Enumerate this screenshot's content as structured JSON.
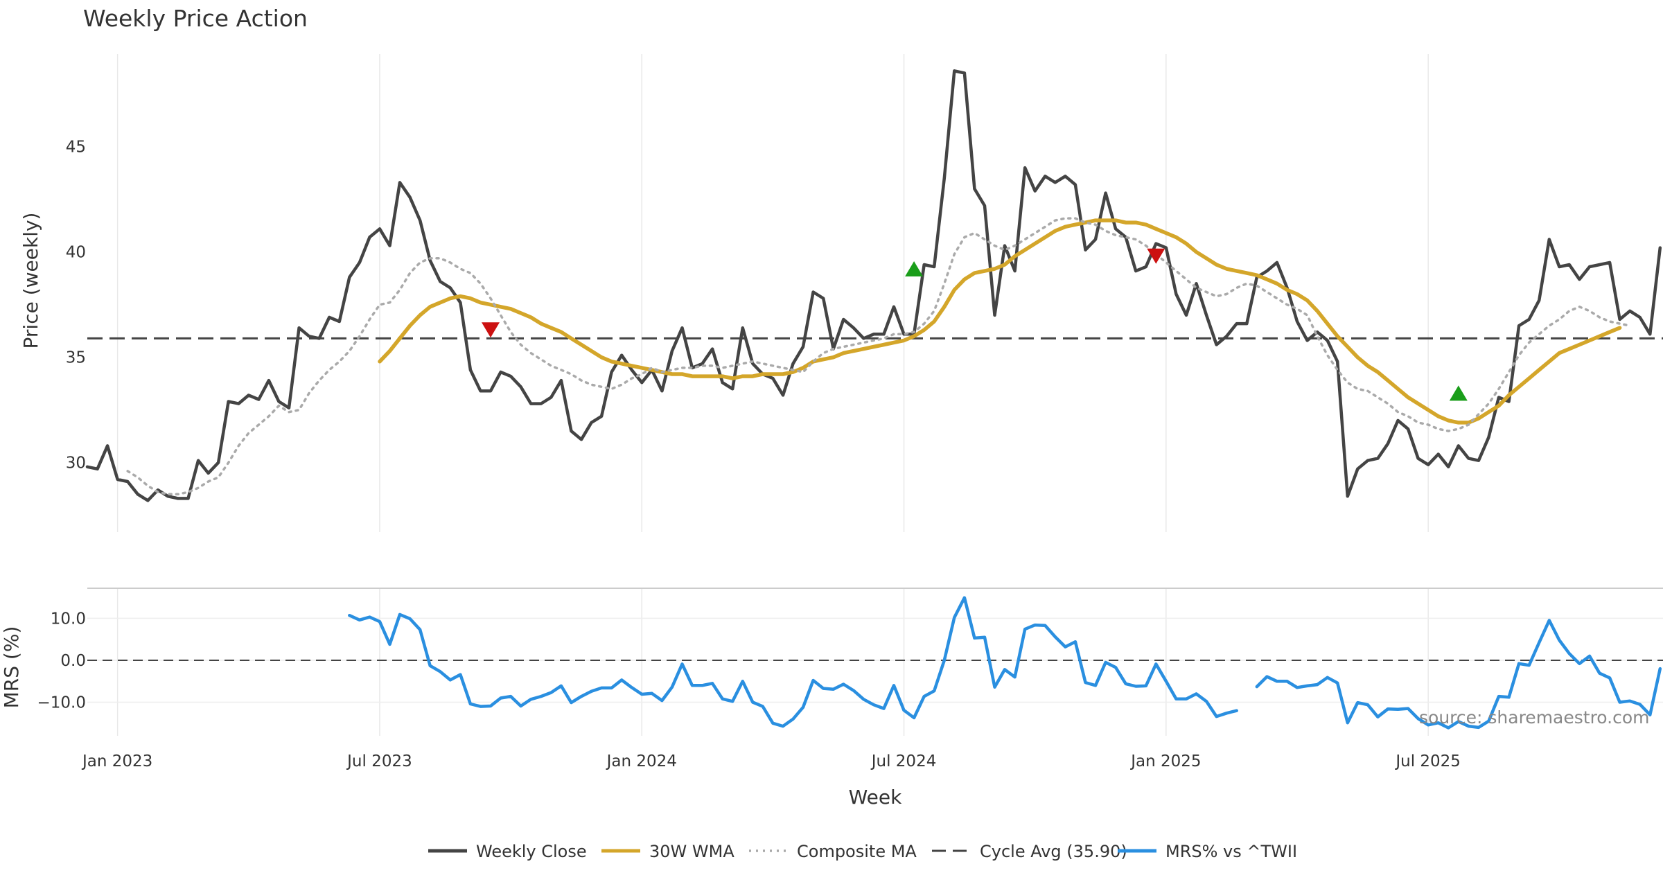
{
  "chart_data": {
    "type": "line",
    "title": "Weekly Price Action",
    "xlabel": "Week",
    "source": "source: sharemaestro.com",
    "x_ticks": [
      "Jan 2023",
      "Jul 2023",
      "Jan 2024",
      "Jul 2024",
      "Jan 2025",
      "Jul 2025"
    ],
    "x_tick_weeks": [
      3,
      29,
      55,
      81,
      107,
      133
    ],
    "price_panel": {
      "ylabel": "Price (weekly)",
      "ylim": [
        26.7,
        49.4
      ],
      "y_ticks": [
        30,
        35,
        40,
        45
      ],
      "series": [
        {
          "name": "Weekly Close",
          "color": "#444444",
          "values": [
            29.8,
            29.7,
            30.8,
            29.2,
            29.1,
            28.5,
            28.2,
            28.7,
            28.4,
            28.3,
            28.3,
            30.1,
            29.5,
            30.0,
            32.9,
            32.8,
            33.2,
            33.0,
            33.9,
            32.9,
            32.6,
            36.4,
            36.0,
            35.9,
            36.9,
            36.7,
            38.8,
            39.5,
            40.7,
            41.1,
            40.3,
            43.3,
            42.6,
            41.5,
            39.6,
            38.6,
            38.3,
            37.6,
            34.4,
            33.4,
            33.4,
            34.3,
            34.1,
            33.6,
            32.8,
            32.8,
            33.1,
            33.9,
            31.5,
            31.1,
            31.9,
            32.2,
            34.3,
            35.1,
            34.4,
            33.8,
            34.4,
            33.4,
            35.3,
            36.4,
            34.5,
            34.7,
            35.4,
            33.8,
            33.5,
            36.4,
            34.7,
            34.2,
            34.0,
            33.2,
            34.7,
            35.5,
            38.1,
            37.8,
            35.4,
            36.8,
            36.4,
            35.9,
            36.1,
            36.1,
            37.4,
            36.1,
            36.1,
            39.4,
            39.3,
            43.5,
            48.6,
            48.5,
            43.0,
            42.2,
            37.0,
            40.3,
            39.1,
            44.0,
            42.9,
            43.6,
            43.3,
            43.6,
            43.2,
            40.1,
            40.6,
            42.8,
            41.1,
            40.7,
            39.1,
            39.3,
            40.4,
            40.2,
            38.0,
            37.0,
            38.5,
            37.0,
            35.6,
            36.0,
            36.6,
            36.6,
            38.8,
            39.1,
            39.5,
            38.3,
            36.7,
            35.8,
            36.2,
            35.8,
            34.8,
            28.4,
            29.7,
            30.1,
            30.2,
            30.9,
            32.0,
            31.6,
            30.2,
            29.9,
            30.4,
            29.8,
            30.8,
            30.2,
            30.1,
            31.2,
            33.1,
            32.9,
            36.5,
            36.8,
            37.7,
            40.6,
            39.3,
            39.4,
            38.7,
            39.3,
            39.4,
            39.5,
            36.8,
            37.2,
            36.9,
            36.1,
            40.2
          ]
        },
        {
          "name": "30W WMA",
          "color": "#d4a62a",
          "start_week": 29,
          "values": [
            34.8,
            35.3,
            35.9,
            36.5,
            37.0,
            37.4,
            37.6,
            37.8,
            37.9,
            37.8,
            37.6,
            37.5,
            37.4,
            37.3,
            37.1,
            36.9,
            36.6,
            36.4,
            36.2,
            35.9,
            35.6,
            35.3,
            35.0,
            34.8,
            34.7,
            34.6,
            34.5,
            34.4,
            34.3,
            34.2,
            34.2,
            34.1,
            34.1,
            34.1,
            34.1,
            34.0,
            34.1,
            34.1,
            34.2,
            34.2,
            34.2,
            34.3,
            34.5,
            34.8,
            34.9,
            35.0,
            35.2,
            35.3,
            35.4,
            35.5,
            35.6,
            35.7,
            35.8,
            36.0,
            36.3,
            36.7,
            37.4,
            38.2,
            38.7,
            39.0,
            39.1,
            39.2,
            39.4,
            39.8,
            40.1,
            40.4,
            40.7,
            41.0,
            41.2,
            41.3,
            41.4,
            41.5,
            41.5,
            41.5,
            41.4,
            41.4,
            41.3,
            41.1,
            40.9,
            40.7,
            40.4,
            40.0,
            39.7,
            39.4,
            39.2,
            39.1,
            39.0,
            38.9,
            38.7,
            38.5,
            38.2,
            38.0,
            37.7,
            37.2,
            36.6,
            36.0,
            35.5,
            35.0,
            34.6,
            34.3,
            33.9,
            33.5,
            33.1,
            32.8,
            32.5,
            32.2,
            32.0,
            31.9,
            31.9,
            32.1,
            32.4,
            32.7,
            33.2,
            33.6,
            34.0,
            34.4,
            34.8,
            35.2,
            35.4,
            35.6,
            35.8,
            36.0,
            36.2,
            36.4
          ]
        },
        {
          "name": "Composite MA",
          "color": "#aaaaaa",
          "start_week": 4,
          "values": [
            29.6,
            29.3,
            28.9,
            28.6,
            28.5,
            28.5,
            28.6,
            28.8,
            29.1,
            29.3,
            30.0,
            30.8,
            31.4,
            31.8,
            32.2,
            32.7,
            32.4,
            32.5,
            33.3,
            33.9,
            34.4,
            34.8,
            35.3,
            36.0,
            36.8,
            37.5,
            37.6,
            38.2,
            39.0,
            39.5,
            39.7,
            39.7,
            39.5,
            39.2,
            39.0,
            38.5,
            37.8,
            37.0,
            36.2,
            35.6,
            35.2,
            34.9,
            34.6,
            34.4,
            34.2,
            33.9,
            33.7,
            33.6,
            33.5,
            33.7,
            34.0,
            34.2,
            34.5,
            34.3,
            34.4,
            34.5,
            34.5,
            34.6,
            34.6,
            34.5,
            34.6,
            34.7,
            34.8,
            34.7,
            34.6,
            34.5,
            34.4,
            34.3,
            34.8,
            35.2,
            35.4,
            35.5,
            35.6,
            35.7,
            35.8,
            35.9,
            36.1,
            36.1,
            36.2,
            36.6,
            37.2,
            38.5,
            39.9,
            40.7,
            40.9,
            40.6,
            40.3,
            40.1,
            40.3,
            40.6,
            40.9,
            41.2,
            41.5,
            41.6,
            41.6,
            41.4,
            41.3,
            41.0,
            40.8,
            40.7,
            40.6,
            40.3,
            39.9,
            39.5,
            39.1,
            38.7,
            38.3,
            38.1,
            37.9,
            38.0,
            38.3,
            38.5,
            38.4,
            38.1,
            37.8,
            37.5,
            37.3,
            37.0,
            36.0,
            35.1,
            34.4,
            33.8,
            33.5,
            33.4,
            33.1,
            32.8,
            32.4,
            32.2,
            31.9,
            31.8,
            31.6,
            31.5,
            31.6,
            31.8,
            32.3,
            32.8,
            33.5,
            34.3,
            35.1,
            35.7,
            36.1,
            36.5,
            36.8,
            37.2,
            37.4,
            37.2,
            36.9,
            36.7,
            36.6,
            36.5
          ]
        }
      ],
      "reference_line": {
        "name": "Cycle Avg (35.90)",
        "value": 35.9,
        "color": "#444444"
      },
      "signals": [
        {
          "type": "sell",
          "week": 40,
          "value": 36.3,
          "color": "#cc1111"
        },
        {
          "type": "buy",
          "week": 82,
          "value": 39.2,
          "color": "#1a9e1a"
        },
        {
          "type": "sell",
          "week": 106,
          "value": 39.8,
          "color": "#cc1111"
        },
        {
          "type": "buy",
          "week": 136,
          "value": 33.3,
          "color": "#1a9e1a"
        }
      ]
    },
    "mrs_panel": {
      "ylabel": "MRS (%)",
      "ylim": [
        -18,
        17
      ],
      "y_ticks": [
        10.0,
        0.0,
        -10.0
      ],
      "y_tick_labels": [
        "10.0",
        "0.0",
        "−10.0"
      ],
      "reference_line": {
        "value": 0,
        "color": "#444444"
      },
      "series": [
        {
          "name": "MRS% vs ^TWII",
          "color": "#2a8fe0",
          "segments": [
            {
              "start_week": 26,
              "values": [
                10.7,
                9.6,
                10.3,
                9.2,
                3.8,
                10.9,
                9.9,
                7.3,
                -1.3,
                -2.7,
                -4.7,
                -3.4,
                -10.4,
                -11.0,
                -10.9,
                -9.0,
                -8.6,
                -10.9,
                -9.3,
                -8.6,
                -7.7,
                -6.1,
                -10.1,
                -8.6,
                -7.4,
                -6.6,
                -6.6,
                -4.7,
                -6.5,
                -8.1,
                -7.9,
                -9.6,
                -6.4,
                -0.9,
                -6.0,
                -6.0,
                -5.5,
                -9.2,
                -9.8,
                -5.0,
                -10.0,
                -11.0,
                -15.0,
                -15.7,
                -14.0,
                -11.2,
                -4.8,
                -6.7,
                -6.9,
                -5.7,
                -7.2,
                -9.3,
                -10.6,
                -11.5,
                -6.0,
                -11.9,
                -13.7,
                -8.6,
                -7.3,
                0.0,
                10.2,
                14.9,
                5.3,
                5.5,
                -6.4,
                -2.2,
                -4.0,
                7.4,
                8.4,
                8.3,
                5.6,
                3.2,
                4.4,
                -5.3,
                -6.0,
                -0.5,
                -1.7,
                -5.6,
                -6.2,
                -6.1,
                -0.9,
                -5.0,
                -9.2,
                -9.2,
                -8.0,
                -9.8,
                -13.4,
                -12.6,
                -12.0
              ]
            },
            {
              "start_week": 116,
              "values": [
                -6.3,
                -3.9,
                -5.0,
                -5.0,
                -6.5,
                -6.1,
                -5.8,
                -4.1,
                -5.4,
                -14.9,
                -10.1,
                -10.6,
                -13.5,
                -11.6,
                -11.7,
                -11.5,
                -13.9,
                -15.4,
                -14.9,
                -16.1,
                -14.6,
                -15.7,
                -16.0,
                -14.5,
                -8.6,
                -8.8,
                -0.8,
                -1.2,
                4.2,
                9.5,
                4.8,
                1.6,
                -0.8,
                1.0,
                -3.1,
                -4.2,
                -10.0,
                -9.7,
                -10.5,
                -13.0,
                -2.0
              ]
            }
          ]
        }
      ]
    },
    "legend": [
      {
        "label": "Weekly Close",
        "style": "solid",
        "color": "#444444"
      },
      {
        "label": "30W WMA",
        "style": "solid",
        "color": "#d4a62a"
      },
      {
        "label": "Composite MA",
        "style": "dotted",
        "color": "#aaaaaa"
      },
      {
        "label": "Cycle Avg (35.90)",
        "style": "dashed",
        "color": "#444444"
      },
      {
        "label": "MRS% vs ^TWII",
        "style": "solid",
        "color": "#2a8fe0"
      }
    ]
  }
}
